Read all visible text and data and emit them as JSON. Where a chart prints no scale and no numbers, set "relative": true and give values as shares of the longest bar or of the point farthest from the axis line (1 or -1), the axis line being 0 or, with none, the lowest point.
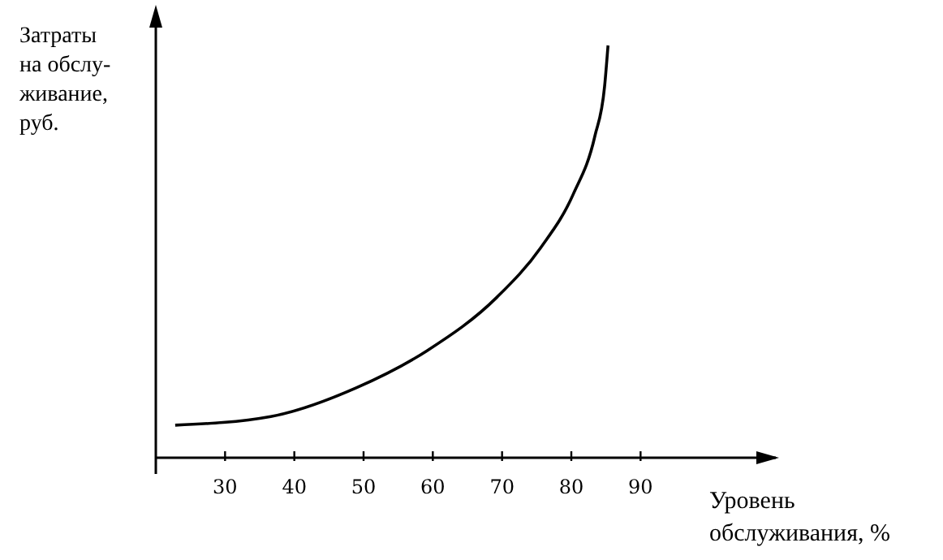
{
  "chart_data": {
    "type": "line",
    "relative": true,
    "xlabel": "Уровень обслуживания, %",
    "ylabel": "Затраты на обслу- живание, руб.",
    "xlim": [
      20,
      110
    ],
    "xticks": [
      30,
      40,
      50,
      60,
      70,
      80,
      90
    ],
    "marker": "none",
    "line_style": "solid",
    "grid": false,
    "series": [
      {
        "color": "#000000",
        "x": [
          22.8,
          36.6,
          49.0,
          59.2,
          69.3,
          75.6,
          80.3,
          83.4,
          84.8,
          85.3
        ],
        "values": [
          0.079,
          0.1,
          0.17,
          0.26,
          0.39,
          0.51,
          0.64,
          0.78,
          0.9,
          1
        ]
      }
    ]
  }
}
